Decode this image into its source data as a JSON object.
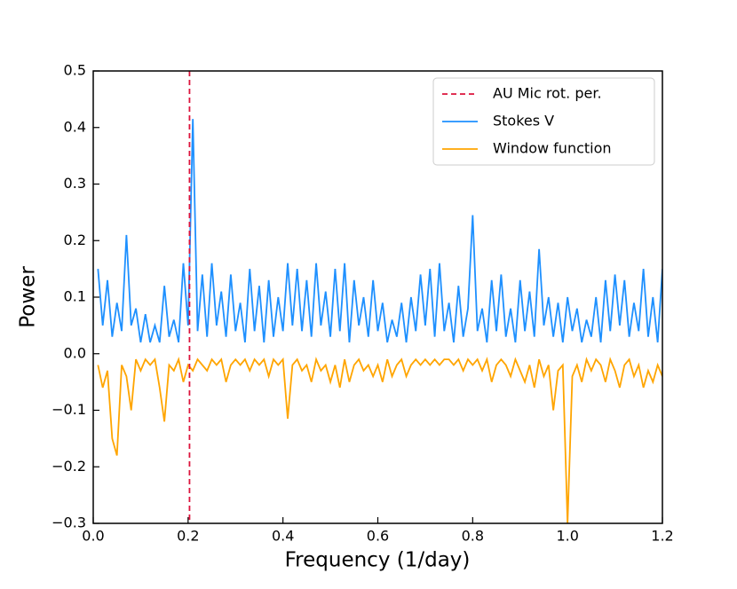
{
  "chart_data": {
    "type": "line",
    "xlabel": "Frequency (1/day)",
    "ylabel": "Power",
    "xlim": [
      0,
      1.2
    ],
    "ylim": [
      -0.3,
      0.5
    ],
    "xticks": [
      {
        "value": 0,
        "label": "0.0"
      },
      0.2,
      0.4,
      0.6,
      0.8,
      {
        "value": 1,
        "label": "1.0"
      },
      1.2
    ],
    "yticks": [
      {
        "value": -0.3,
        "label": "−0.3"
      },
      {
        "value": -0.2,
        "label": "−0.2"
      },
      {
        "value": -0.1,
        "label": "−0.1"
      },
      {
        "value": 0,
        "label": "0.0"
      },
      0.1,
      0.2,
      0.3,
      0.4,
      0.5
    ],
    "legend": "upper right",
    "vline": {
      "name": "AU Mic rot. per.",
      "x": 0.203,
      "color": "#dc143c"
    },
    "x": [
      0.01,
      0.02,
      0.03,
      0.04,
      0.05,
      0.06,
      0.07,
      0.08,
      0.09,
      0.1,
      0.11,
      0.12,
      0.13,
      0.14,
      0.15,
      0.16,
      0.17,
      0.18,
      0.19,
      0.2,
      0.21,
      0.22,
      0.23,
      0.24,
      0.25,
      0.26,
      0.27,
      0.28,
      0.29,
      0.3,
      0.31,
      0.32,
      0.33,
      0.34,
      0.35,
      0.36,
      0.37,
      0.38,
      0.39,
      0.4,
      0.41,
      0.42,
      0.43,
      0.44,
      0.45,
      0.46,
      0.47,
      0.48,
      0.49,
      0.5,
      0.51,
      0.52,
      0.53,
      0.54,
      0.55,
      0.56,
      0.57,
      0.58,
      0.59,
      0.6,
      0.61,
      0.62,
      0.63,
      0.64,
      0.65,
      0.66,
      0.67,
      0.68,
      0.69,
      0.7,
      0.71,
      0.72,
      0.73,
      0.74,
      0.75,
      0.76,
      0.77,
      0.78,
      0.79,
      0.8,
      0.81,
      0.82,
      0.83,
      0.84,
      0.85,
      0.86,
      0.87,
      0.88,
      0.89,
      0.9,
      0.91,
      0.92,
      0.93,
      0.94,
      0.95,
      0.96,
      0.97,
      0.98,
      0.99,
      1.0,
      1.01,
      1.02,
      1.03,
      1.04,
      1.05,
      1.06,
      1.07,
      1.08,
      1.09,
      1.1,
      1.11,
      1.12,
      1.13,
      1.14,
      1.15,
      1.16,
      1.17,
      1.18,
      1.19,
      1.2
    ],
    "series": [
      {
        "name": "Stokes V",
        "color": "#1e90ff",
        "values": [
          0.15,
          0.05,
          0.13,
          0.03,
          0.09,
          0.04,
          0.21,
          0.05,
          0.08,
          0.02,
          0.07,
          0.02,
          0.05,
          0.02,
          0.12,
          0.03,
          0.06,
          0.02,
          0.16,
          0.05,
          0.415,
          0.04,
          0.14,
          0.03,
          0.16,
          0.05,
          0.11,
          0.03,
          0.14,
          0.04,
          0.09,
          0.02,
          0.15,
          0.04,
          0.12,
          0.02,
          0.13,
          0.03,
          0.1,
          0.04,
          0.16,
          0.05,
          0.15,
          0.04,
          0.13,
          0.03,
          0.16,
          0.05,
          0.11,
          0.03,
          0.15,
          0.04,
          0.16,
          0.02,
          0.13,
          0.05,
          0.1,
          0.03,
          0.13,
          0.04,
          0.09,
          0.02,
          0.06,
          0.03,
          0.09,
          0.02,
          0.1,
          0.04,
          0.14,
          0.05,
          0.15,
          0.03,
          0.16,
          0.04,
          0.09,
          0.02,
          0.12,
          0.03,
          0.08,
          0.245,
          0.04,
          0.08,
          0.02,
          0.13,
          0.04,
          0.14,
          0.03,
          0.08,
          0.02,
          0.13,
          0.04,
          0.11,
          0.03,
          0.185,
          0.05,
          0.1,
          0.03,
          0.09,
          0.02,
          0.1,
          0.04,
          0.08,
          0.02,
          0.06,
          0.03,
          0.1,
          0.02,
          0.13,
          0.04,
          0.14,
          0.05,
          0.13,
          0.03,
          0.09,
          0.04,
          0.15,
          0.03,
          0.1,
          0.02,
          0.15
        ]
      },
      {
        "name": "Window function",
        "color": "#ffa500",
        "values": [
          -0.02,
          -0.06,
          -0.03,
          -0.15,
          -0.18,
          -0.02,
          -0.04,
          -0.1,
          -0.01,
          -0.03,
          -0.01,
          -0.02,
          -0.01,
          -0.06,
          -0.12,
          -0.02,
          -0.03,
          -0.01,
          -0.05,
          -0.02,
          -0.03,
          -0.01,
          -0.02,
          -0.03,
          -0.01,
          -0.02,
          -0.01,
          -0.05,
          -0.02,
          -0.01,
          -0.02,
          -0.01,
          -0.03,
          -0.01,
          -0.02,
          -0.01,
          -0.04,
          -0.01,
          -0.02,
          -0.01,
          -0.115,
          -0.02,
          -0.01,
          -0.03,
          -0.02,
          -0.05,
          -0.01,
          -0.03,
          -0.02,
          -0.05,
          -0.02,
          -0.06,
          -0.01,
          -0.05,
          -0.02,
          -0.01,
          -0.03,
          -0.02,
          -0.04,
          -0.02,
          -0.05,
          -0.01,
          -0.04,
          -0.02,
          -0.01,
          -0.04,
          -0.02,
          -0.01,
          -0.02,
          -0.01,
          -0.02,
          -0.01,
          -0.02,
          -0.01,
          -0.01,
          -0.02,
          -0.01,
          -0.03,
          -0.01,
          -0.02,
          -0.01,
          -0.03,
          -0.01,
          -0.05,
          -0.02,
          -0.01,
          -0.02,
          -0.04,
          -0.01,
          -0.03,
          -0.05,
          -0.02,
          -0.06,
          -0.01,
          -0.04,
          -0.02,
          -0.1,
          -0.03,
          -0.02,
          -0.3,
          -0.04,
          -0.02,
          -0.05,
          -0.01,
          -0.03,
          -0.01,
          -0.02,
          -0.05,
          -0.01,
          -0.03,
          -0.06,
          -0.02,
          -0.01,
          -0.04,
          -0.02,
          -0.06,
          -0.03,
          -0.05,
          -0.02,
          -0.04
        ]
      }
    ]
  }
}
